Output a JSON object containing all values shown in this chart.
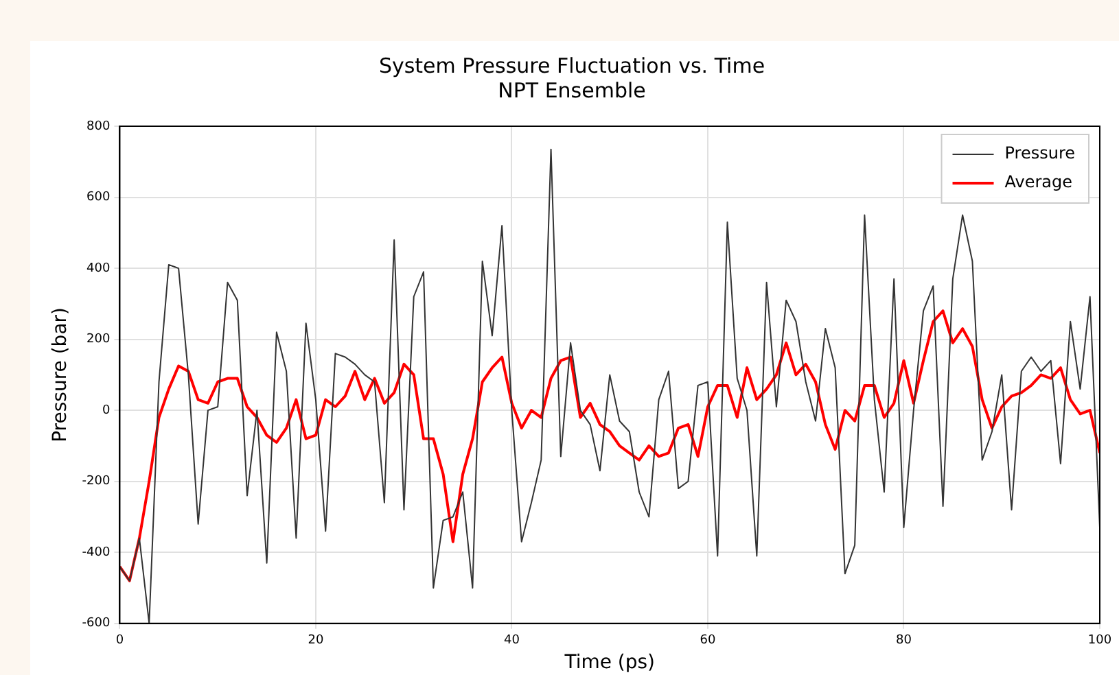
{
  "chart_data": {
    "type": "line",
    "title": "System Pressure Fluctuation vs. Time",
    "subtitle": "NPT Ensemble",
    "xlabel": "Time (ps)",
    "ylabel": "Pressure (bar)",
    "x": [
      0,
      1,
      2,
      3,
      4,
      5,
      6,
      7,
      8,
      9,
      10,
      11,
      12,
      13,
      14,
      15,
      16,
      17,
      18,
      19,
      20,
      21,
      22,
      23,
      24,
      25,
      26,
      27,
      28,
      29,
      30,
      31,
      32,
      33,
      34,
      35,
      36,
      37,
      38,
      39,
      40,
      41,
      42,
      43,
      44,
      45,
      46,
      47,
      48,
      49,
      50,
      51,
      52,
      53,
      54,
      55,
      56,
      57,
      58,
      59,
      60,
      61,
      62,
      63,
      64,
      65,
      66,
      67,
      68,
      69,
      70,
      71,
      72,
      73,
      74,
      75,
      76,
      77,
      78,
      79,
      80,
      81,
      82,
      83,
      84,
      85,
      86,
      87,
      88,
      89,
      90,
      91,
      92,
      93,
      94,
      95,
      96,
      97,
      98,
      99,
      100
    ],
    "series": [
      {
        "name": "Pressure",
        "color": "#333333",
        "values": [
          -440,
          -480,
          -360,
          -600,
          80,
          410,
          400,
          100,
          -320,
          0,
          10,
          360,
          310,
          -240,
          0,
          -430,
          220,
          110,
          -360,
          245,
          30,
          -340,
          160,
          150,
          130,
          100,
          80,
          -260,
          480,
          -280,
          320,
          390,
          -500,
          -310,
          -300,
          -230,
          -500,
          420,
          210,
          520,
          0,
          -370,
          -260,
          -140,
          735,
          -130,
          190,
          0,
          -40,
          -170,
          100,
          -30,
          -60,
          -230,
          -300,
          30,
          110,
          -220,
          -200,
          70,
          80,
          -410,
          530,
          90,
          0,
          -410,
          360,
          10,
          310,
          250,
          80,
          -30,
          230,
          120,
          -460,
          -380,
          550,
          30,
          -230,
          370,
          -330,
          0,
          280,
          350,
          -270,
          370,
          550,
          420,
          -140,
          -60,
          100,
          -280,
          110,
          150,
          110,
          140,
          -150,
          250,
          60,
          320,
          -330
        ]
      },
      {
        "name": "Average",
        "color": "#ff0000",
        "values": [
          -440,
          -480,
          -360,
          -200,
          -20,
          60,
          125,
          110,
          30,
          20,
          80,
          90,
          90,
          10,
          -20,
          -70,
          -90,
          -50,
          30,
          -80,
          -70,
          30,
          10,
          40,
          110,
          30,
          90,
          20,
          50,
          130,
          100,
          -80,
          -80,
          -180,
          -370,
          -180,
          -80,
          80,
          120,
          150,
          20,
          -50,
          0,
          -20,
          90,
          140,
          150,
          -20,
          20,
          -40,
          -60,
          -100,
          -120,
          -140,
          -100,
          -130,
          -120,
          -50,
          -40,
          -130,
          10,
          70,
          70,
          -20,
          120,
          30,
          60,
          100,
          190,
          100,
          130,
          80,
          -40,
          -110,
          0,
          -30,
          70,
          70,
          -20,
          20,
          140,
          20,
          140,
          250,
          280,
          190,
          230,
          180,
          30,
          -50,
          10,
          40,
          50,
          70,
          100,
          90,
          120,
          30,
          -10,
          0,
          -120
        ]
      }
    ],
    "xlim": [
      0,
      100
    ],
    "xticks": [
      0,
      20,
      40,
      60,
      80,
      100
    ],
    "ylim": [
      -600,
      800
    ],
    "yticks": [
      -600,
      -400,
      -200,
      0,
      200,
      400,
      600,
      800
    ],
    "grid": true,
    "legend": "top right",
    "marker": "none",
    "line_style": "solid"
  }
}
